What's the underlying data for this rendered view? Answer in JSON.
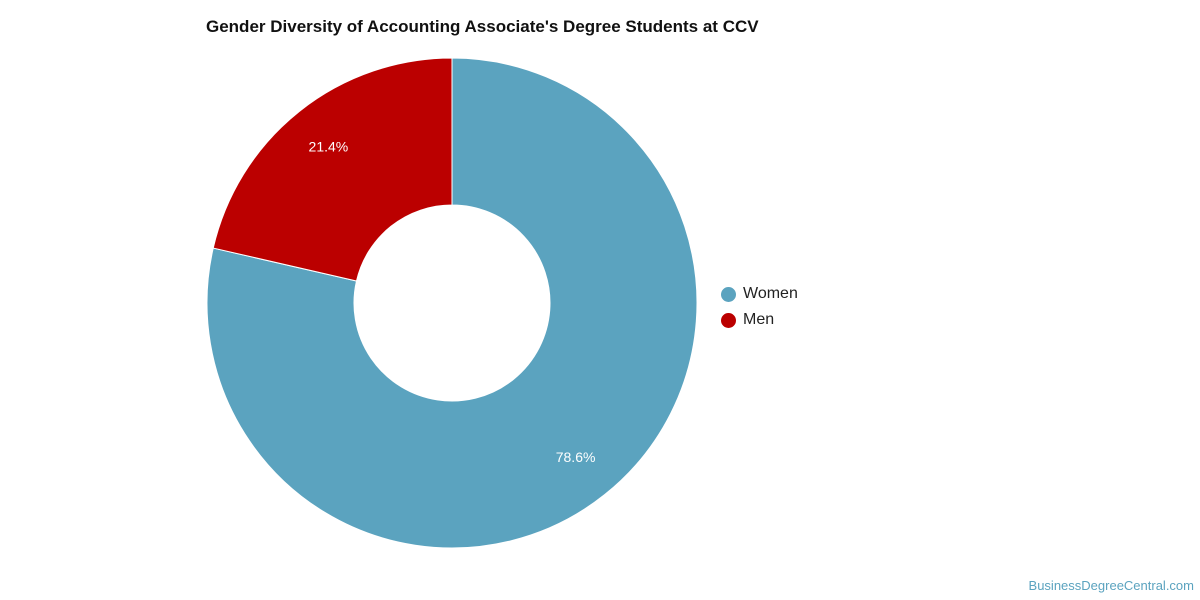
{
  "chart_data": {
    "type": "pie",
    "variant": "donut",
    "title": "Gender Diversity of Accounting Associate's Degree Students at CCV",
    "series": [
      {
        "name": "Women",
        "value": 78.6,
        "label": "78.6%",
        "color": "#5ba3bf"
      },
      {
        "name": "Men",
        "value": 21.4,
        "label": "21.4%",
        "color": "#bb0000"
      }
    ],
    "legend_position": "right"
  },
  "watermark": {
    "text": "BusinessDegreeCentral.com",
    "color": "#5ba3bf"
  }
}
